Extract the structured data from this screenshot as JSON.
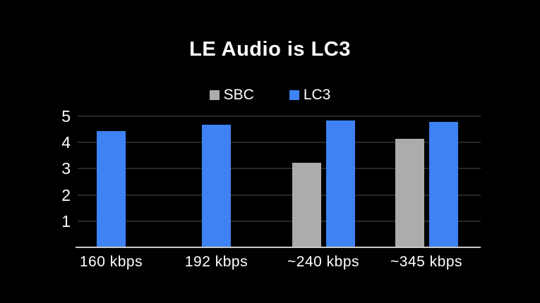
{
  "page": {
    "background": "#000000"
  },
  "chart_data": {
    "type": "bar",
    "title": "LE Audio is LC3",
    "categories": [
      "160 kbps",
      "192 kbps",
      "~240 kbps",
      "~345 kbps"
    ],
    "series": [
      {
        "name": "SBC",
        "color": "#acacac",
        "values": [
          null,
          null,
          3.2,
          4.1
        ]
      },
      {
        "name": "LC3",
        "color": "#3e82f4",
        "values": [
          4.4,
          4.65,
          4.8,
          4.75
        ]
      }
    ],
    "ylim": [
      0,
      5
    ],
    "yticks": [
      1,
      2,
      3,
      4,
      5
    ],
    "xlabel": "",
    "ylabel": "",
    "grid": true,
    "legend_position": "top",
    "axis_colors": {
      "gridline": "#272727",
      "baseline": "#c9c9c9",
      "tick_text": "#ffffff"
    }
  },
  "legend": {
    "items": [
      {
        "label": "SBC",
        "color": "#acacac"
      },
      {
        "label": "LC3",
        "color": "#3e82f4"
      }
    ]
  }
}
